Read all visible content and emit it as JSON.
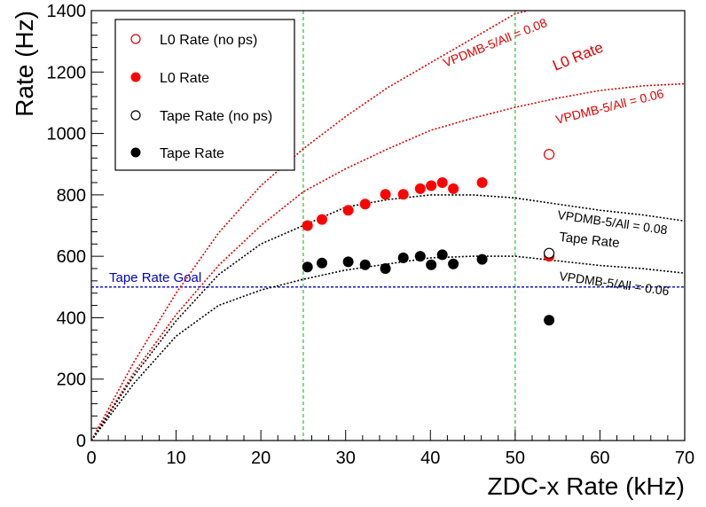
{
  "chart_data": {
    "type": "scatter",
    "title": "",
    "xlabel": "ZDC-x Rate (kHz)",
    "ylabel": "Rate (Hz)",
    "xlim": [
      0,
      70
    ],
    "ylim": [
      0,
      1400
    ],
    "x_ticks": [
      0,
      10,
      20,
      30,
      40,
      50,
      60,
      70
    ],
    "y_ticks": [
      0,
      200,
      400,
      600,
      800,
      1000,
      1200,
      1400
    ],
    "grid": false,
    "legend_position": "top-left",
    "series": [
      {
        "name": "L0 Rate (no ps)",
        "marker": "open-circle",
        "color": "#e00000",
        "points": [
          [
            54.0,
            932
          ]
        ]
      },
      {
        "name": "L0 Rate",
        "marker": "filled-circle",
        "color": "#ff0000",
        "points": [
          [
            25.5,
            700
          ],
          [
            27.2,
            720
          ],
          [
            30.3,
            750
          ],
          [
            32.3,
            770
          ],
          [
            34.7,
            802
          ],
          [
            36.8,
            802
          ],
          [
            38.8,
            820
          ],
          [
            40.1,
            830
          ],
          [
            41.4,
            840
          ],
          [
            42.7,
            820
          ],
          [
            46.1,
            840
          ],
          [
            54.0,
            600
          ]
        ]
      },
      {
        "name": "Tape Rate (no ps)",
        "marker": "open-circle",
        "color": "#000000",
        "points": [
          [
            54.0,
            610
          ]
        ]
      },
      {
        "name": "Tape Rate",
        "marker": "filled-circle",
        "color": "#000000",
        "points": [
          [
            25.5,
            565
          ],
          [
            27.2,
            578
          ],
          [
            30.3,
            582
          ],
          [
            32.3,
            572
          ],
          [
            34.7,
            560
          ],
          [
            36.8,
            595
          ],
          [
            38.8,
            600
          ],
          [
            40.1,
            572
          ],
          [
            41.4,
            605
          ],
          [
            42.7,
            575
          ],
          [
            46.1,
            590
          ],
          [
            54.0,
            392
          ]
        ]
      }
    ],
    "curves": [
      {
        "color": "#e00000",
        "label": "VPDMB-5/All = 0.08",
        "points": [
          [
            0,
            0
          ],
          [
            5,
            255
          ],
          [
            10,
            480
          ],
          [
            15,
            676
          ],
          [
            20,
            830
          ],
          [
            25,
            950
          ],
          [
            30,
            1055
          ],
          [
            35,
            1150
          ],
          [
            40,
            1230
          ],
          [
            45,
            1310
          ],
          [
            50,
            1390
          ],
          [
            51.5,
            1410
          ]
        ]
      },
      {
        "color": "#e00000",
        "label": "VPDMB-5/All = 0.06",
        "points": [
          [
            0,
            0
          ],
          [
            5,
            220
          ],
          [
            10,
            410
          ],
          [
            15,
            570
          ],
          [
            20,
            700
          ],
          [
            25,
            810
          ],
          [
            30,
            885
          ],
          [
            35,
            950
          ],
          [
            40,
            1010
          ],
          [
            45,
            1050
          ],
          [
            50,
            1085
          ],
          [
            55,
            1115
          ],
          [
            60,
            1140
          ],
          [
            65,
            1155
          ],
          [
            70,
            1162
          ]
        ]
      },
      {
        "color": "#000000",
        "label": "VPDMB-5/All = 0.08",
        "points": [
          [
            0,
            0
          ],
          [
            5,
            210
          ],
          [
            10,
            390
          ],
          [
            15,
            540
          ],
          [
            20,
            640
          ],
          [
            25,
            700
          ],
          [
            30,
            760
          ],
          [
            35,
            785
          ],
          [
            40,
            800
          ],
          [
            45,
            800
          ],
          [
            50,
            790
          ],
          [
            55,
            770
          ],
          [
            60,
            750
          ],
          [
            65,
            735
          ],
          [
            70,
            715
          ]
        ]
      },
      {
        "color": "#000000",
        "label": "VPDMB-5/All = 0.06",
        "points": [
          [
            0,
            0
          ],
          [
            5,
            185
          ],
          [
            10,
            340
          ],
          [
            15,
            440
          ],
          [
            20,
            490
          ],
          [
            25,
            525
          ],
          [
            30,
            555
          ],
          [
            35,
            575
          ],
          [
            40,
            595
          ],
          [
            45,
            600
          ],
          [
            50,
            600
          ],
          [
            55,
            585
          ],
          [
            60,
            570
          ],
          [
            65,
            560
          ],
          [
            70,
            545
          ]
        ]
      }
    ],
    "vertical_lines": [
      {
        "x": 25,
        "color": "#33bb33"
      },
      {
        "x": 50,
        "color": "#33bb33"
      }
    ],
    "horizontal_lines": [
      {
        "y": 500,
        "color": "#0000cc",
        "label": "Tape Rate Goal"
      }
    ],
    "annotations": [
      {
        "text": "VPDMB-5/All = 0.08",
        "color": "#e00000"
      },
      {
        "text": "L0 Rate",
        "color": "#e00000"
      },
      {
        "text": "VPDMB-5/All = 0.06",
        "color": "#e00000"
      },
      {
        "text": "VPDMB-5/All = 0.08",
        "color": "#000000"
      },
      {
        "text": "Tape Rate",
        "color": "#000000"
      },
      {
        "text": "VPDMB-5/All = 0.06",
        "color": "#000000"
      },
      {
        "text": "Tape Rate Goal",
        "color": "#0000cc"
      }
    ]
  }
}
